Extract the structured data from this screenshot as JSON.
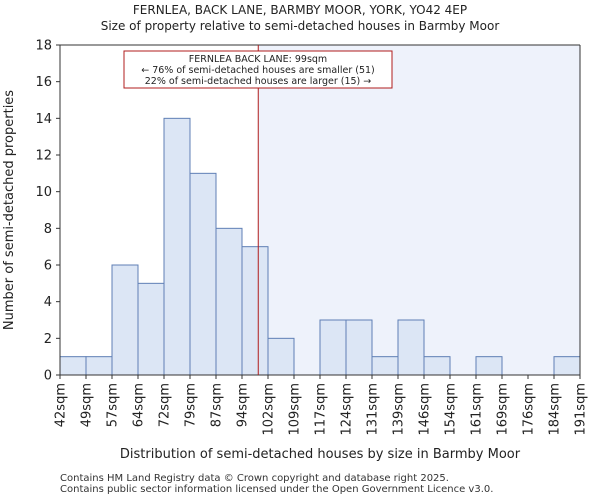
{
  "chart_data": {
    "type": "histogram",
    "title": "FERNLEA, BACK LANE, BARMBY MOOR, YORK, YO42 4EP",
    "subtitle": "Size of property relative to semi-detached houses in Barmby Moor",
    "xlabel": "Distribution of semi-detached houses by size in Barmby Moor",
    "ylabel": "Number of semi-detached properties",
    "categories": [
      "42sqm",
      "49sqm",
      "57sqm",
      "64sqm",
      "72sqm",
      "79sqm",
      "87sqm",
      "94sqm",
      "102sqm",
      "109sqm",
      "117sqm",
      "124sqm",
      "131sqm",
      "139sqm",
      "146sqm",
      "154sqm",
      "161sqm",
      "169sqm",
      "176sqm",
      "184sqm",
      "191sqm"
    ],
    "values": [
      1,
      1,
      6,
      5,
      14,
      11,
      8,
      7,
      2,
      0,
      3,
      3,
      1,
      3,
      1,
      0,
      1,
      0,
      0,
      1
    ],
    "ylim": [
      0,
      18
    ],
    "yticks": [
      0,
      2,
      4,
      6,
      8,
      10,
      12,
      14,
      16,
      18
    ],
    "marker": {
      "value_sqm": 99,
      "lines": [
        "FERNLEA BACK LANE: 99sqm",
        "← 76% of semi-detached houses are smaller (51)",
        "22% of semi-detached houses are larger (15) →"
      ]
    },
    "colors": {
      "bar_fill": "#dce6f5",
      "bar_edge": "#5f7fb5",
      "marker": "#b01c1c",
      "right_shade": "#eef2fb"
    },
    "grid": false
  },
  "footer": {
    "line1": "Contains HM Land Registry data © Crown copyright and database right 2025.",
    "line2": "Contains public sector information licensed under the Open Government Licence v3.0."
  }
}
